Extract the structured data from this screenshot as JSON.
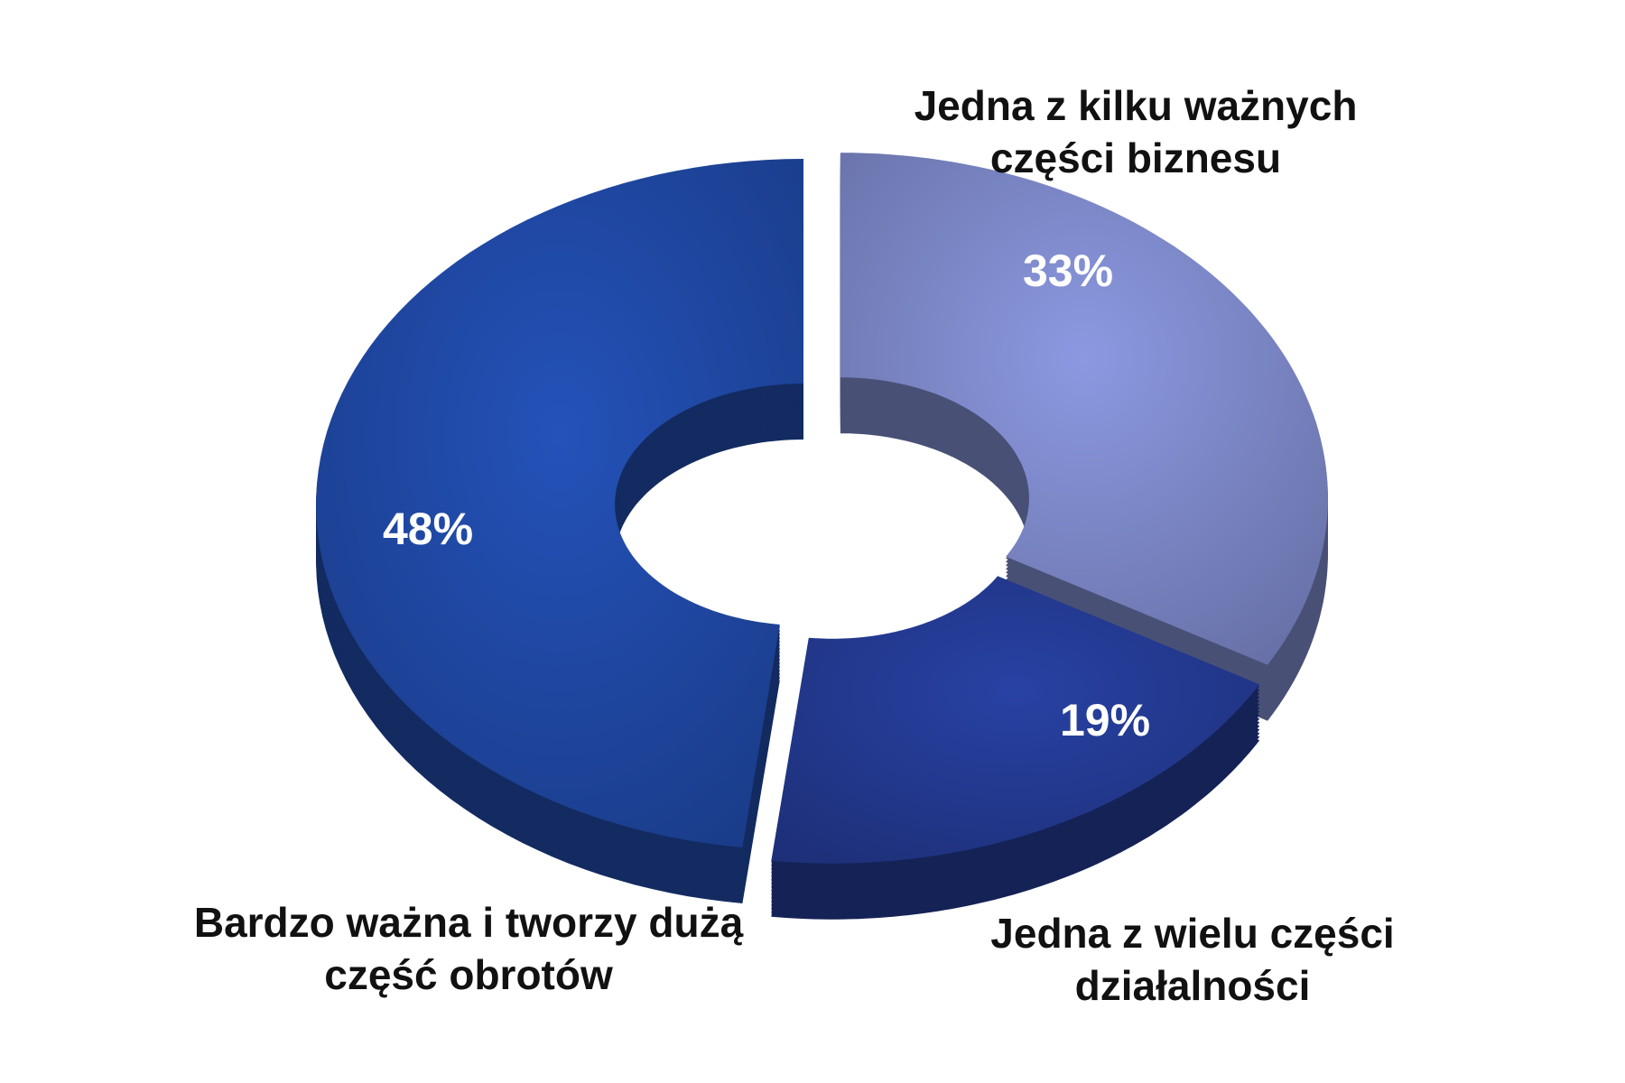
{
  "chart_data": {
    "type": "pie",
    "donut": true,
    "categories": [
      "Jedna z kilku ważnych części biznesu",
      "Jedna z wielu części działalności",
      "Bardzo ważna i tworzy dużą część obrotów"
    ],
    "values": [
      33,
      19,
      48
    ],
    "value_labels": [
      "33%",
      "19%",
      "48%"
    ],
    "colors": [
      "#7a85c4",
      "#23398f",
      "#1f47a1"
    ]
  }
}
